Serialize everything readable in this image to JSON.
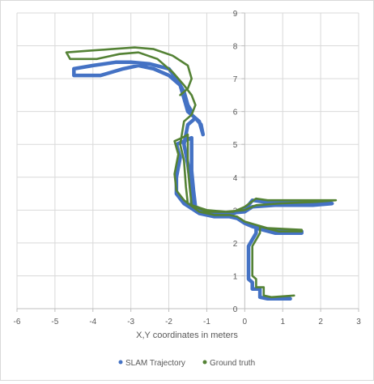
{
  "chart_data": {
    "type": "scatter",
    "title": "",
    "xlabel": "X,Y coordinates in meters",
    "ylabel": "",
    "xlim": [
      -6,
      3
    ],
    "ylim": [
      0,
      9
    ],
    "x_ticks": [
      -6,
      -5,
      -4,
      -3,
      -2,
      -1,
      0,
      1,
      2,
      3
    ],
    "y_ticks": [
      0,
      1,
      2,
      3,
      4,
      5,
      6,
      7,
      8,
      9
    ],
    "grid": true,
    "legend_position": "bottom",
    "series": [
      {
        "name": "SLAM Trajectory",
        "color": "#4472C4",
        "points": [
          [
            1.2,
            0.3
          ],
          [
            0.6,
            0.3
          ],
          [
            0.4,
            0.35
          ],
          [
            0.4,
            0.6
          ],
          [
            0.2,
            0.6
          ],
          [
            0.2,
            0.8
          ],
          [
            0.1,
            0.9
          ],
          [
            0.1,
            1.5
          ],
          [
            0.1,
            1.9
          ],
          [
            0.2,
            2.1
          ],
          [
            0.3,
            2.3
          ],
          [
            0.3,
            2.45
          ],
          [
            0.8,
            2.3
          ],
          [
            1.5,
            2.3
          ],
          [
            1.5,
            2.35
          ],
          [
            0.5,
            2.4
          ],
          [
            0.2,
            2.5
          ],
          [
            0.0,
            2.6
          ],
          [
            -0.2,
            2.75
          ],
          [
            -0.4,
            2.8
          ],
          [
            -0.8,
            2.8
          ],
          [
            -1.2,
            2.9
          ],
          [
            -1.6,
            3.2
          ],
          [
            -1.8,
            3.5
          ],
          [
            -1.8,
            4.0
          ],
          [
            -1.7,
            4.6
          ],
          [
            -1.8,
            5.0
          ],
          [
            -1.6,
            5.1
          ],
          [
            -1.4,
            5.2
          ],
          [
            -1.4,
            4.8
          ],
          [
            -1.4,
            4.2
          ],
          [
            -1.35,
            3.6
          ],
          [
            -1.3,
            3.1
          ],
          [
            -1.0,
            2.95
          ],
          [
            -0.5,
            2.9
          ],
          [
            0.0,
            2.95
          ],
          [
            0.2,
            3.1
          ],
          [
            0.8,
            3.15
          ],
          [
            1.8,
            3.15
          ],
          [
            2.3,
            3.2
          ],
          [
            1.5,
            3.25
          ],
          [
            0.5,
            3.25
          ],
          [
            0.2,
            3.3
          ],
          [
            0.0,
            3.0
          ],
          [
            -0.3,
            2.9
          ],
          [
            -1.0,
            2.9
          ],
          [
            -1.4,
            3.1
          ],
          [
            -1.4,
            3.6
          ],
          [
            -1.5,
            4.4
          ],
          [
            -1.6,
            5.0
          ],
          [
            -1.5,
            5.6
          ],
          [
            -1.3,
            5.8
          ],
          [
            -1.15,
            5.6
          ],
          [
            -1.1,
            5.3
          ],
          [
            -1.2,
            5.7
          ],
          [
            -1.5,
            6.0
          ],
          [
            -1.6,
            6.4
          ],
          [
            -1.7,
            6.8
          ],
          [
            -2.0,
            7.1
          ],
          [
            -2.4,
            7.3
          ],
          [
            -2.8,
            7.4
          ],
          [
            -3.2,
            7.3
          ],
          [
            -3.8,
            7.1
          ],
          [
            -4.5,
            7.1
          ],
          [
            -4.5,
            7.3
          ],
          [
            -4.0,
            7.4
          ],
          [
            -3.4,
            7.5
          ],
          [
            -3.0,
            7.5
          ],
          [
            -2.5,
            7.45
          ],
          [
            -2.0,
            7.3
          ],
          [
            -1.8,
            7.0
          ],
          [
            -1.6,
            6.6
          ],
          [
            -1.5,
            6.2
          ],
          [
            -1.4,
            6.0
          ]
        ]
      },
      {
        "name": "Ground truth",
        "color": "#548235",
        "points": [
          [
            1.3,
            0.4
          ],
          [
            0.7,
            0.35
          ],
          [
            0.5,
            0.4
          ],
          [
            0.5,
            0.65
          ],
          [
            0.3,
            0.65
          ],
          [
            0.3,
            0.9
          ],
          [
            0.2,
            1.0
          ],
          [
            0.2,
            1.5
          ],
          [
            0.2,
            1.9
          ],
          [
            0.3,
            2.1
          ],
          [
            0.4,
            2.3
          ],
          [
            0.4,
            2.5
          ],
          [
            0.9,
            2.35
          ],
          [
            1.5,
            2.35
          ],
          [
            1.5,
            2.4
          ],
          [
            0.6,
            2.45
          ],
          [
            0.3,
            2.55
          ],
          [
            0.0,
            2.65
          ],
          [
            -0.2,
            2.8
          ],
          [
            -0.4,
            2.85
          ],
          [
            -0.8,
            2.85
          ],
          [
            -1.2,
            2.95
          ],
          [
            -1.6,
            3.3
          ],
          [
            -1.8,
            3.6
          ],
          [
            -1.85,
            4.1
          ],
          [
            -1.75,
            4.7
          ],
          [
            -1.85,
            5.1
          ],
          [
            -1.65,
            5.2
          ],
          [
            -1.5,
            5.3
          ],
          [
            -1.5,
            4.9
          ],
          [
            -1.5,
            4.3
          ],
          [
            -1.45,
            3.7
          ],
          [
            -1.4,
            3.15
          ],
          [
            -1.0,
            3.0
          ],
          [
            -0.5,
            2.95
          ],
          [
            0.0,
            3.0
          ],
          [
            0.3,
            3.15
          ],
          [
            0.9,
            3.2
          ],
          [
            1.9,
            3.25
          ],
          [
            2.4,
            3.3
          ],
          [
            1.6,
            3.3
          ],
          [
            0.6,
            3.3
          ],
          [
            0.3,
            3.35
          ],
          [
            0.0,
            3.1
          ],
          [
            -0.3,
            2.95
          ],
          [
            -1.0,
            2.95
          ],
          [
            -1.5,
            3.2
          ],
          [
            -1.55,
            3.7
          ],
          [
            -1.6,
            4.5
          ],
          [
            -1.7,
            5.0
          ],
          [
            -1.6,
            5.7
          ],
          [
            -1.4,
            5.9
          ],
          [
            -1.3,
            6.2
          ],
          [
            -1.4,
            6.5
          ],
          [
            -1.6,
            6.8
          ],
          [
            -1.9,
            7.2
          ],
          [
            -2.3,
            7.6
          ],
          [
            -2.8,
            7.8
          ],
          [
            -3.3,
            7.75
          ],
          [
            -3.9,
            7.6
          ],
          [
            -4.6,
            7.6
          ],
          [
            -4.7,
            7.8
          ],
          [
            -4.1,
            7.85
          ],
          [
            -3.5,
            7.9
          ],
          [
            -2.9,
            7.95
          ],
          [
            -2.4,
            7.9
          ],
          [
            -1.9,
            7.7
          ],
          [
            -1.5,
            7.4
          ],
          [
            -1.4,
            7.0
          ],
          [
            -1.5,
            6.7
          ],
          [
            -1.7,
            6.5
          ]
        ]
      }
    ]
  }
}
